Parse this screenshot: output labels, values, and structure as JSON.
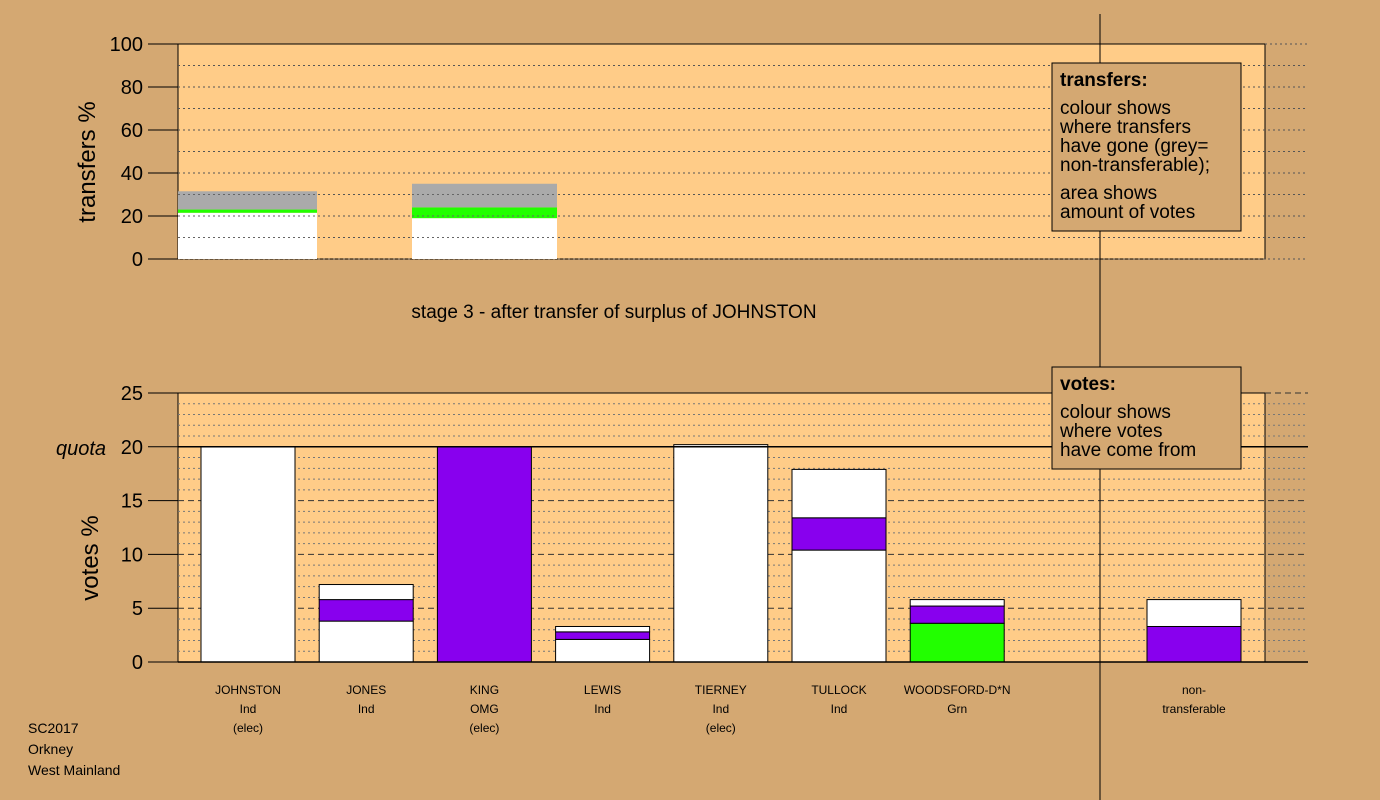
{
  "colors": {
    "background": "#d4a872",
    "plot_area": "#ffcc88",
    "white": "#ffffff",
    "purple": "#8800ee",
    "green": "#22ff00",
    "grey": "#aaaaaa"
  },
  "footer": {
    "line1": "SC2017",
    "line2": "Orkney",
    "line3": "West Mainland"
  },
  "legend_transfers": {
    "title": "transfers:",
    "lines": [
      "colour shows",
      "where transfers",
      "have gone (grey=",
      "non-transferable);"
    ],
    "lines2": [
      "area shows",
      "amount of votes"
    ]
  },
  "legend_votes": {
    "title": "votes:",
    "lines": [
      "colour shows",
      "where votes",
      "have come from"
    ]
  },
  "chart_data": [
    {
      "type": "bar",
      "ylabel": "transfers %",
      "ylim": [
        0,
        100
      ],
      "yticks": [
        0,
        20,
        40,
        60,
        80,
        100
      ],
      "bars": [
        {
          "segments": [
            {
              "color": "white",
              "value": 21.5
            },
            {
              "color": "green",
              "value": 1.5
            },
            {
              "color": "grey",
              "value": 8.5
            }
          ]
        },
        {
          "segments": [
            {
              "color": "white",
              "value": 19
            },
            {
              "color": "green",
              "value": 5
            },
            {
              "color": "grey",
              "value": 11
            }
          ]
        }
      ]
    },
    {
      "type": "bar",
      "title": "stage 3 - after transfer of surplus of JOHNSTON",
      "ylabel": "votes %",
      "quota_label": "quota",
      "quota": 20,
      "ylim": [
        0,
        25
      ],
      "yticks": [
        0,
        5,
        10,
        15,
        20,
        25
      ],
      "candidates": [
        {
          "name": "JOHNSTON",
          "party": "Ind",
          "status": "(elec)",
          "segments": [
            {
              "color": "white",
              "value": 20
            }
          ]
        },
        {
          "name": "JONES",
          "party": "Ind",
          "status": "",
          "segments": [
            {
              "color": "white",
              "value": 3.8
            },
            {
              "color": "purple",
              "value": 2
            },
            {
              "color": "white",
              "value": 1.4
            }
          ]
        },
        {
          "name": "KING",
          "party": "OMG",
          "status": "(elec)",
          "segments": [
            {
              "color": "purple",
              "value": 20
            }
          ]
        },
        {
          "name": "LEWIS",
          "party": "Ind",
          "status": "",
          "segments": [
            {
              "color": "white",
              "value": 2.1
            },
            {
              "color": "purple",
              "value": 0.7
            },
            {
              "color": "white",
              "value": 0.5
            }
          ]
        },
        {
          "name": "TIERNEY",
          "party": "Ind",
          "status": "(elec)",
          "segments": [
            {
              "color": "white",
              "value": 20.2
            }
          ]
        },
        {
          "name": "TULLOCK",
          "party": "Ind",
          "status": "",
          "segments": [
            {
              "color": "white",
              "value": 10.4
            },
            {
              "color": "purple",
              "value": 3
            },
            {
              "color": "white",
              "value": 4.5
            }
          ]
        },
        {
          "name": "WOODSFORD-D*N",
          "party": "Grn",
          "status": "",
          "segments": [
            {
              "color": "green",
              "value": 3.6
            },
            {
              "color": "purple",
              "value": 1.6
            },
            {
              "color": "white",
              "value": 0.6
            }
          ]
        }
      ],
      "non_transferable": {
        "label1": "non-",
        "label2": "transferable",
        "segments": [
          {
            "color": "purple",
            "value": 3.3
          },
          {
            "color": "white",
            "value": 2.5
          }
        ]
      }
    }
  ]
}
